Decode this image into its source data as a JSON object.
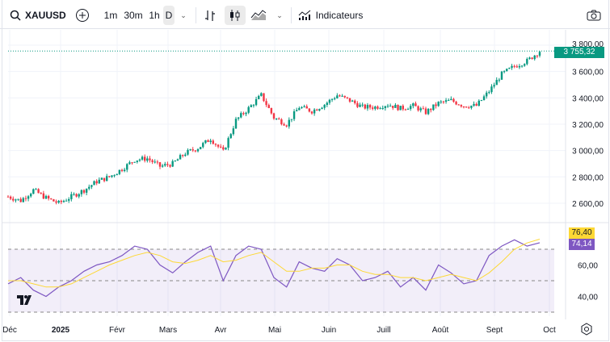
{
  "toolbar": {
    "symbol": "XAUUSD",
    "intervals": [
      "1m",
      "30m",
      "1h",
      "D"
    ],
    "active_interval": "D",
    "indicators_label": "Indicateurs"
  },
  "price_badge": "3 755,32",
  "rsi_badges": {
    "ma": "76,40",
    "rsi": "74,14"
  },
  "colors": {
    "up": "#089981",
    "down": "#f23645",
    "rsi": "#7e57c2",
    "ma": "#fdd835",
    "badge_green": "#089981"
  },
  "chart_data": [
    {
      "type": "candlestick",
      "title": "XAUUSD D",
      "ylim": [
        2540,
        3840
      ],
      "y_ticks": [
        "3 800,00",
        "3 600,00",
        "3 400,00",
        "3 200,00",
        "3 000,00",
        "2 800,00",
        "2 600,00"
      ],
      "y_tick_values": [
        3800,
        3600,
        3400,
        3200,
        3000,
        2800,
        2600
      ],
      "x_ticks": [
        "Déc",
        "2025",
        "Févr",
        "Mars",
        "Avr",
        "Mai",
        "Juin",
        "Juill",
        "Août",
        "Sept",
        "Oct"
      ],
      "weekly_closes": [
        2650,
        2620,
        2700,
        2640,
        2600,
        2650,
        2700,
        2765,
        2800,
        2860,
        2930,
        2940,
        2880,
        2900,
        2980,
        3020,
        3090,
        2990,
        3230,
        3320,
        3420,
        3250,
        3200,
        3330,
        3300,
        3350,
        3420,
        3380,
        3330,
        3330,
        3350,
        3320,
        3340,
        3290,
        3360,
        3380,
        3340,
        3340,
        3450,
        3580,
        3640,
        3680,
        3755
      ],
      "last": 3755.32
    },
    {
      "type": "line",
      "title": "RSI",
      "ylim": [
        25,
        85
      ],
      "y_ticks": [
        "60,00",
        "40,00"
      ],
      "y_tick_values": [
        60,
        40
      ],
      "bands": [
        30,
        50,
        70
      ],
      "series": [
        {
          "name": "RSI",
          "values": [
            48,
            52,
            44,
            40,
            46,
            50,
            56,
            60,
            62,
            66,
            72,
            70,
            60,
            55,
            62,
            68,
            72,
            50,
            66,
            72,
            70,
            52,
            46,
            62,
            58,
            56,
            64,
            60,
            50,
            52,
            56,
            46,
            52,
            44,
            60,
            55,
            48,
            50,
            66,
            72,
            76,
            72,
            74.14
          ]
        },
        {
          "name": "RSI MA",
          "values": [
            50,
            50,
            48,
            46,
            46,
            48,
            52,
            56,
            60,
            63,
            66,
            68,
            66,
            62,
            61,
            63,
            66,
            62,
            63,
            66,
            68,
            62,
            56,
            56,
            58,
            58,
            60,
            60,
            56,
            54,
            54,
            52,
            52,
            50,
            52,
            54,
            52,
            50,
            55,
            62,
            70,
            74,
            76.4
          ]
        }
      ]
    }
  ]
}
